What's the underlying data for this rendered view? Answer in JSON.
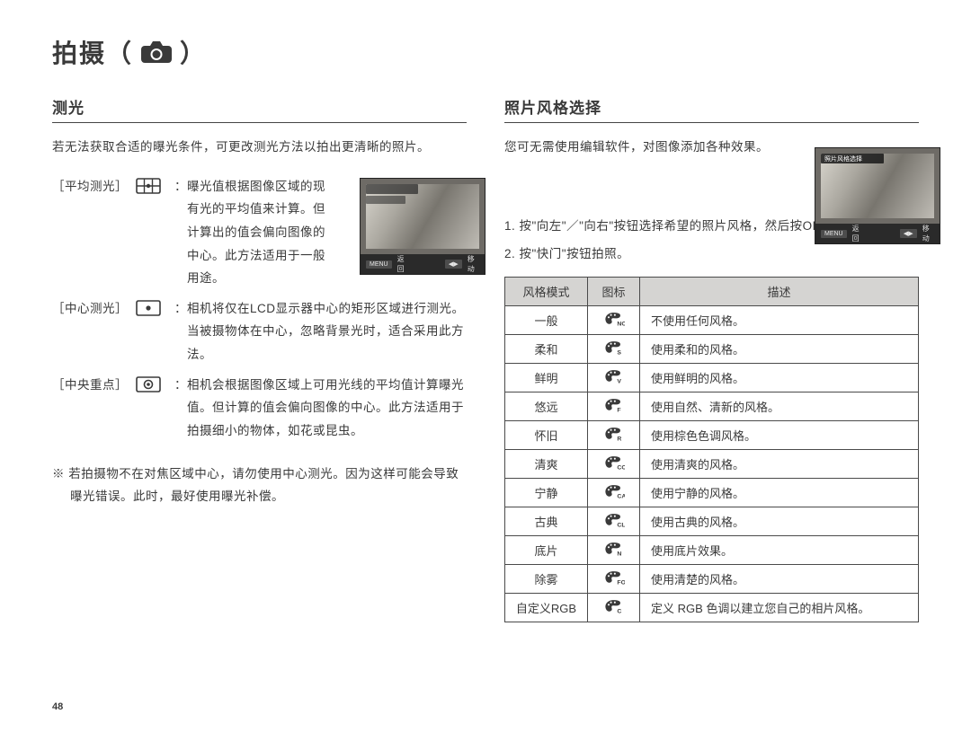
{
  "page_title_prefix": "拍摄（",
  "page_title_suffix": "）",
  "page_number": "48",
  "left": {
    "heading": "测光",
    "intro": "若无法获取合适的曝光条件，可更改测光方法以拍出更清晰的照片。",
    "items": [
      {
        "label": "［平均测光］",
        "body": "曝光值根据图像区域的现有光的平均值来计算。但计算出的值会偏向图像的中心。此方法适用于一般用途。"
      },
      {
        "label": "［中心测光］",
        "body": "相机将仅在LCD显示器中心的矩形区域进行测光。当被摄物体在中心，忽略背景光时，适合采用此方法。"
      },
      {
        "label": "［中央重点］",
        "body": "相机会根据图像区域上可用光线的平均值计算曝光值。但计算的值会偏向图像的中心。此方法适用于拍摄细小的物体，如花或昆虫。"
      }
    ],
    "note": "※  若拍摄物不在对焦区域中心，请勿使用中心测光。因为这样可能会导致曝光错误。此时，最好使用曝光补偿。",
    "lcd": {
      "btn1": "MENU",
      "txt1": "返回",
      "btn2": "◀▶",
      "txt2": "移动"
    }
  },
  "right": {
    "heading": "照片风格选择",
    "intro": "您可无需使用编辑软件，对图像添加各种效果。",
    "steps": [
      "1.  按\"向左\"／\"向右\"按钮选择希望的照片风格，然后按OK按钮。",
      "2.  按\"快门\"按钮拍照。"
    ],
    "lcd": {
      "overlay": "照片风格选择",
      "btn1": "MENU",
      "txt1": "返回",
      "btn2": "◀▶",
      "txt2": "移动"
    },
    "table": {
      "headers": [
        "风格模式",
        "图标",
        "描述"
      ],
      "rows": [
        {
          "mode": "一般",
          "sub": "NOR",
          "desc": "不使用任何风格。"
        },
        {
          "mode": "柔和",
          "sub": "S",
          "desc": "使用柔和的风格。"
        },
        {
          "mode": "鲜明",
          "sub": "V",
          "desc": "使用鲜明的风格。"
        },
        {
          "mode": "悠远",
          "sub": "F",
          "desc": "使用自然、清新的风格。"
        },
        {
          "mode": "怀旧",
          "sub": "R",
          "desc": "使用棕色色调风格。"
        },
        {
          "mode": "清爽",
          "sub": "CO",
          "desc": "使用清爽的风格。"
        },
        {
          "mode": "宁静",
          "sub": "CA",
          "desc": "使用宁静的风格。"
        },
        {
          "mode": "古典",
          "sub": "CL",
          "desc": "使用古典的风格。"
        },
        {
          "mode": "底片",
          "sub": "N",
          "desc": "使用底片效果。"
        },
        {
          "mode": "除雾",
          "sub": "FO",
          "desc": "使用清楚的风格。"
        },
        {
          "mode": "自定义RGB",
          "sub": "C",
          "desc": "定义 RGB 色调以建立您自己的相片风格。"
        }
      ]
    }
  }
}
